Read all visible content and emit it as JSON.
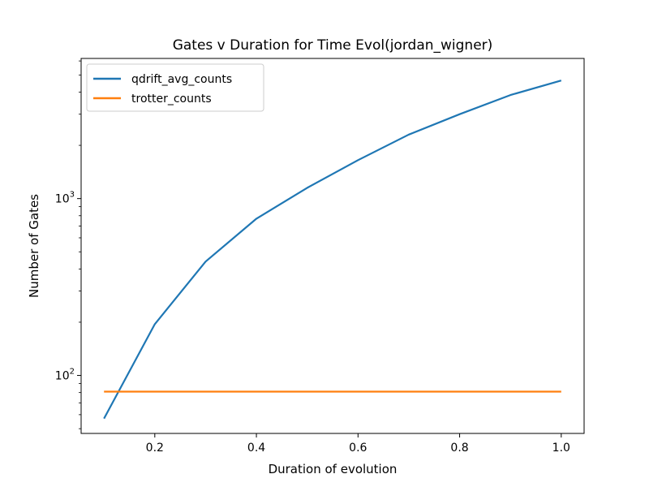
{
  "chart_data": {
    "type": "line",
    "title": "Gates v Duration for Time Evol(jordan_wigner)",
    "xlabel": "Duration of evolution",
    "ylabel": "Number of Gates",
    "yscale": "log",
    "xlim": [
      0.055,
      1.045
    ],
    "ylim": [
      47,
      6200
    ],
    "x_ticks": [
      {
        "value": 0.2,
        "label": "0.2"
      },
      {
        "value": 0.4,
        "label": "0.4"
      },
      {
        "value": 0.6,
        "label": "0.6"
      },
      {
        "value": 0.8,
        "label": "0.8"
      },
      {
        "value": 1.0,
        "label": "1.0"
      }
    ],
    "y_major_ticks": [
      {
        "value": 100,
        "base": "10",
        "exp": "2"
      },
      {
        "value": 1000,
        "base": "10",
        "exp": "3"
      }
    ],
    "y_minor_ticks": [
      50,
      60,
      70,
      80,
      90,
      200,
      300,
      400,
      500,
      600,
      700,
      800,
      900,
      2000,
      3000,
      4000,
      5000,
      6000
    ],
    "legend_position": "top-left",
    "series": [
      {
        "name": "qdrift_avg_counts",
        "color": "#1f77b4",
        "x": [
          0.1,
          0.2,
          0.3,
          0.4,
          0.5,
          0.6,
          0.7,
          0.8,
          0.9,
          1.0
        ],
        "values": [
          57,
          195,
          440,
          770,
          1150,
          1650,
          2300,
          3000,
          3850,
          4650
        ]
      },
      {
        "name": "trotter_counts",
        "color": "#ff7f0e",
        "x": [
          0.1,
          0.2,
          0.3,
          0.4,
          0.5,
          0.6,
          0.7,
          0.8,
          0.9,
          1.0
        ],
        "values": [
          81,
          81,
          81,
          81,
          81,
          81,
          81,
          81,
          81,
          81
        ]
      }
    ]
  }
}
